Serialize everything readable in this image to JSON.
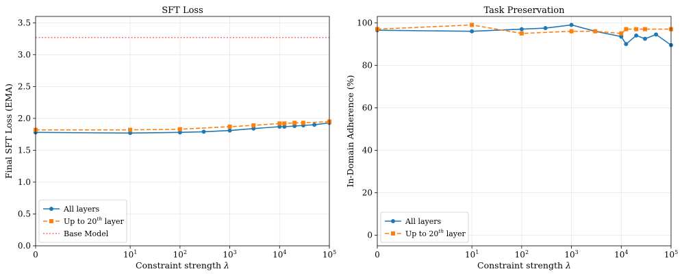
{
  "chart_data": [
    {
      "type": "line",
      "title": "SFT Loss",
      "xlabel": "Constraint strength λ",
      "ylabel": "Final SFT Loss (EMA)",
      "xscale": "symlog",
      "xlim": [
        0,
        100000
      ],
      "ylim": [
        0,
        3.6
      ],
      "x_ticks": [
        {
          "value": 0,
          "base": "0",
          "exp": ""
        },
        {
          "value": 10,
          "base": "10",
          "exp": "1"
        },
        {
          "value": 100,
          "base": "10",
          "exp": "2"
        },
        {
          "value": 1000,
          "base": "10",
          "exp": "3"
        },
        {
          "value": 10000,
          "base": "10",
          "exp": "4"
        },
        {
          "value": 100000,
          "base": "10",
          "exp": "5"
        }
      ],
      "y_ticks": [
        0,
        0.5,
        1.0,
        1.5,
        2.0,
        2.5,
        3.0,
        3.5
      ],
      "y_tick_labels": [
        "0.0",
        "0.5",
        "1.0",
        "1.5",
        "2.0",
        "2.5",
        "3.0",
        "3.5"
      ],
      "grid": true,
      "legend_position": "lower-left",
      "series": [
        {
          "name": "All layers",
          "color": "#1f77b4",
          "linestyle": "solid",
          "marker": "circle",
          "x": [
            0,
            10,
            100,
            300,
            1000,
            3000,
            10000,
            12500,
            20000,
            30000,
            50000,
            100000
          ],
          "y": [
            1.78,
            1.77,
            1.78,
            1.79,
            1.81,
            1.84,
            1.87,
            1.87,
            1.88,
            1.89,
            1.9,
            1.93
          ]
        },
        {
          "name": "Up to 20th layer",
          "name_base": "Up to 20",
          "name_sup": "th",
          "name_tail": " layer",
          "color": "#ff7f0e",
          "linestyle": "dashed",
          "marker": "square",
          "x": [
            0,
            10,
            100,
            1000,
            3000,
            10000,
            12500,
            20000,
            30000,
            100000
          ],
          "y": [
            1.82,
            1.82,
            1.83,
            1.87,
            1.89,
            1.92,
            1.92,
            1.93,
            1.93,
            1.95
          ]
        }
      ],
      "reference_lines": [
        {
          "name": "Base Model",
          "y": 3.27,
          "color": "#ff6b6b",
          "linestyle": "dotted"
        }
      ]
    },
    {
      "type": "line",
      "title": "Task Preservation",
      "xlabel": "Constraint strength λ",
      "ylabel": "In-Domain Adherence (%)",
      "xscale": "symlog",
      "xlim": [
        0,
        100000
      ],
      "ylim": [
        -5,
        103
      ],
      "x_ticks": [
        {
          "value": 0,
          "base": "0",
          "exp": ""
        },
        {
          "value": 10,
          "base": "10",
          "exp": "1"
        },
        {
          "value": 100,
          "base": "10",
          "exp": "2"
        },
        {
          "value": 1000,
          "base": "10",
          "exp": "3"
        },
        {
          "value": 10000,
          "base": "10",
          "exp": "4"
        },
        {
          "value": 100000,
          "base": "10",
          "exp": "5"
        }
      ],
      "y_ticks": [
        0,
        20,
        40,
        60,
        80,
        100
      ],
      "y_tick_labels": [
        "0",
        "20",
        "40",
        "60",
        "80",
        "100"
      ],
      "grid": true,
      "legend_position": "lower-left",
      "series": [
        {
          "name": "All layers",
          "color": "#1f77b4",
          "linestyle": "solid",
          "marker": "circle",
          "x": [
            0,
            10,
            100,
            300,
            1000,
            3000,
            10000,
            12500,
            20000,
            30000,
            50000,
            100000
          ],
          "y": [
            96.5,
            96,
            97,
            97.5,
            99,
            96,
            93.5,
            90,
            94,
            92.5,
            94.5,
            89.5
          ]
        },
        {
          "name": "Up to 20th layer",
          "name_base": "Up to 20",
          "name_sup": "th",
          "name_tail": " layer",
          "color": "#ff7f0e",
          "linestyle": "dashed",
          "marker": "square",
          "x": [
            0,
            10,
            100,
            1000,
            3000,
            10000,
            12500,
            20000,
            30000,
            100000
          ],
          "y": [
            97,
            99,
            95,
            96,
            96,
            95,
            97,
            97,
            97,
            97
          ]
        }
      ],
      "reference_lines": []
    }
  ]
}
